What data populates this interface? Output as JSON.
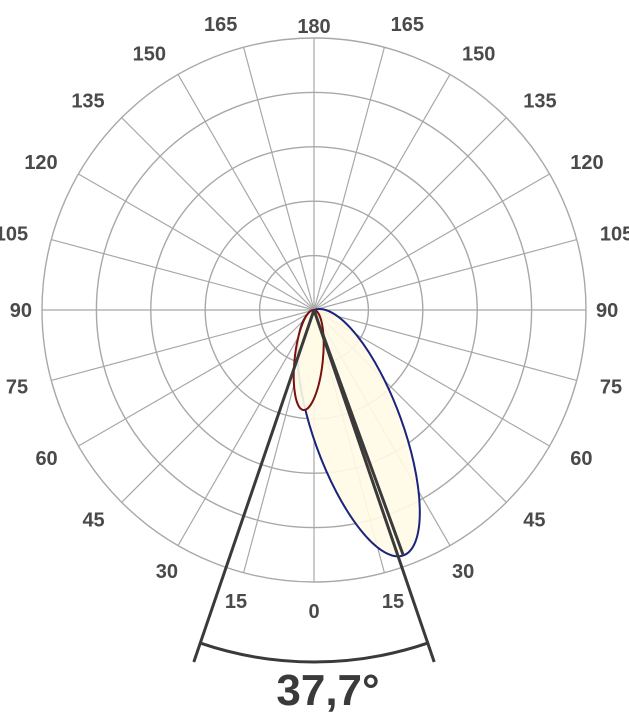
{
  "chart_data": {
    "type": "polar",
    "angle_ticks_left": [
      "180",
      "165",
      "150",
      "135",
      "120",
      "105",
      "90",
      "75",
      "60",
      "45",
      "30",
      "15",
      "0"
    ],
    "angle_ticks_right": [
      "165",
      "150",
      "135",
      "120",
      "105",
      "90",
      "75",
      "60",
      "45",
      "30",
      "15"
    ],
    "angle_tick_values": [
      0,
      15,
      30,
      45,
      60,
      75,
      90,
      105,
      120,
      135,
      150,
      165,
      180
    ],
    "rings": 5,
    "grid": true,
    "beam_angle_label": "37,7°",
    "beam_angle_deg": 37.7,
    "series": [
      {
        "color": "#1a237e",
        "fill": "#fffbe6",
        "axis_angle_deg": 20,
        "peak_fraction": 0.96,
        "width_fraction": 0.34
      },
      {
        "color": "#7a1010",
        "fill": "#fffbe6",
        "axis_angle_deg": -6,
        "peak_fraction": 0.37,
        "width_fraction": 0.28
      }
    ],
    "colors": {
      "grid": "#a8a8a8",
      "beam_lines": "#3a3a3a"
    }
  }
}
